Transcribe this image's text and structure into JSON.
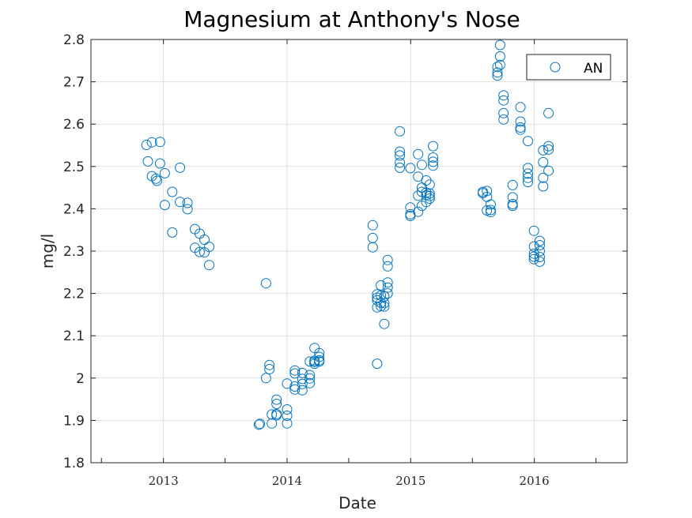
{
  "chart_data": {
    "type": "scatter",
    "title": "Magnesium at Anthony's Nose",
    "xlabel": "Date",
    "ylabel": "mg/l",
    "xlim": [
      "2012-06-01",
      "2016-10-01"
    ],
    "ylim": [
      1.8,
      2.8
    ],
    "x_ticks": [
      "2013-01-01",
      "2014-01-01",
      "2015-01-01",
      "2016-01-01"
    ],
    "x_tick_labels": [
      "2013",
      "2014",
      "2015",
      "2016"
    ],
    "y_ticks": [
      1.8,
      1.9,
      2.0,
      2.1,
      2.2,
      2.3,
      2.4,
      2.5,
      2.6,
      2.7,
      2.8
    ],
    "y_tick_labels": [
      "1.8",
      "1.9",
      "2",
      "2.1",
      "2.2",
      "2.3",
      "2.4",
      "2.5",
      "2.6",
      "2.7",
      "2.8"
    ],
    "grid": true,
    "legend_position": "top-right",
    "marker_color": "#0072bd",
    "series": [
      {
        "name": "AN",
        "points": [
          [
            "2012-11-12",
            2.551
          ],
          [
            "2012-11-16",
            2.512
          ],
          [
            "2012-11-28",
            2.557
          ],
          [
            "2012-11-28",
            2.477
          ],
          [
            "2012-12-10",
            2.471
          ],
          [
            "2012-12-13",
            2.466
          ],
          [
            "2012-12-22",
            2.558
          ],
          [
            "2012-12-22",
            2.507
          ],
          [
            "2013-01-05",
            2.484
          ],
          [
            "2013-01-05",
            2.409
          ],
          [
            "2013-01-27",
            2.44
          ],
          [
            "2013-01-27",
            2.344
          ],
          [
            "2013-02-19",
            2.497
          ],
          [
            "2013-02-19",
            2.416
          ],
          [
            "2013-03-13",
            2.414
          ],
          [
            "2013-03-13",
            2.399
          ],
          [
            "2013-04-04",
            2.352
          ],
          [
            "2013-04-04",
            2.308
          ],
          [
            "2013-04-18",
            2.341
          ],
          [
            "2013-04-18",
            2.298
          ],
          [
            "2013-05-02",
            2.327
          ],
          [
            "2013-05-02",
            2.297
          ],
          [
            "2013-05-16",
            2.31
          ],
          [
            "2013-05-16",
            2.267
          ],
          [
            "2013-10-10",
            1.89
          ],
          [
            "2013-10-13",
            1.892
          ],
          [
            "2013-10-31",
            2.224
          ],
          [
            "2013-10-31",
            2.0
          ],
          [
            "2013-11-10",
            2.031
          ],
          [
            "2013-11-10",
            2.021
          ],
          [
            "2013-11-17",
            1.914
          ],
          [
            "2013-11-17",
            1.893
          ],
          [
            "2013-12-01",
            1.949
          ],
          [
            "2013-12-01",
            1.939
          ],
          [
            "2013-12-01",
            1.915
          ],
          [
            "2013-12-01",
            1.912
          ],
          [
            "2014-01-01",
            1.987
          ],
          [
            "2014-01-01",
            1.926
          ],
          [
            "2014-01-01",
            1.911
          ],
          [
            "2014-01-01",
            1.893
          ],
          [
            "2014-01-24",
            2.018
          ],
          [
            "2014-01-24",
            2.011
          ],
          [
            "2014-01-24",
            1.98
          ],
          [
            "2014-01-24",
            1.973
          ],
          [
            "2014-02-15",
            2.012
          ],
          [
            "2014-02-15",
            1.998
          ],
          [
            "2014-02-15",
            1.986
          ],
          [
            "2014-02-15",
            1.971
          ],
          [
            "2014-03-09",
            2.039
          ],
          [
            "2014-03-09",
            2.007
          ],
          [
            "2014-03-09",
            1.999
          ],
          [
            "2014-03-09",
            1.988
          ],
          [
            "2014-03-23",
            2.071
          ],
          [
            "2014-03-23",
            2.041
          ],
          [
            "2014-03-23",
            2.038
          ],
          [
            "2014-03-23",
            2.034
          ],
          [
            "2014-04-06",
            2.059
          ],
          [
            "2014-04-06",
            2.05
          ],
          [
            "2014-04-06",
            2.042
          ],
          [
            "2014-04-06",
            2.039
          ],
          [
            "2014-09-11",
            2.361
          ],
          [
            "2014-09-11",
            2.331
          ],
          [
            "2014-09-11",
            2.309
          ],
          [
            "2014-09-24",
            2.198
          ],
          [
            "2014-09-24",
            2.19
          ],
          [
            "2014-09-24",
            2.184
          ],
          [
            "2014-09-24",
            2.167
          ],
          [
            "2014-09-24",
            2.034
          ],
          [
            "2014-10-05",
            2.219
          ],
          [
            "2014-10-05",
            2.195
          ],
          [
            "2014-10-05",
            2.178
          ],
          [
            "2014-10-05",
            2.17
          ],
          [
            "2014-10-15",
            2.193
          ],
          [
            "2014-10-15",
            2.177
          ],
          [
            "2014-10-15",
            2.169
          ],
          [
            "2014-10-15",
            2.128
          ],
          [
            "2014-10-25",
            2.279
          ],
          [
            "2014-10-25",
            2.264
          ],
          [
            "2014-10-25",
            2.226
          ],
          [
            "2014-10-25",
            2.214
          ],
          [
            "2014-10-25",
            2.2
          ],
          [
            "2014-11-30",
            2.583
          ],
          [
            "2014-11-30",
            2.535
          ],
          [
            "2014-11-30",
            2.526
          ],
          [
            "2014-11-30",
            2.509
          ],
          [
            "2014-11-30",
            2.497
          ],
          [
            "2014-12-31",
            2.496
          ],
          [
            "2014-12-31",
            2.403
          ],
          [
            "2014-12-31",
            2.387
          ],
          [
            "2014-12-31",
            2.383
          ],
          [
            "2015-01-23",
            2.529
          ],
          [
            "2015-01-23",
            2.476
          ],
          [
            "2015-01-23",
            2.431
          ],
          [
            "2015-01-23",
            2.393
          ],
          [
            "2015-02-03",
            2.504
          ],
          [
            "2015-02-03",
            2.45
          ],
          [
            "2015-02-03",
            2.44
          ],
          [
            "2015-02-03",
            2.407
          ],
          [
            "2015-02-16",
            2.467
          ],
          [
            "2015-02-16",
            2.438
          ],
          [
            "2015-02-16",
            2.432
          ],
          [
            "2015-02-16",
            2.416
          ],
          [
            "2015-02-26",
            2.457
          ],
          [
            "2015-02-26",
            2.436
          ],
          [
            "2015-02-26",
            2.43
          ],
          [
            "2015-02-26",
            2.424
          ],
          [
            "2015-03-08",
            2.548
          ],
          [
            "2015-03-08",
            2.521
          ],
          [
            "2015-03-08",
            2.511
          ],
          [
            "2015-03-08",
            2.502
          ],
          [
            "2015-08-02",
            2.44
          ],
          [
            "2015-08-02",
            2.437
          ],
          [
            "2015-08-14",
            2.442
          ],
          [
            "2015-08-14",
            2.428
          ],
          [
            "2015-08-14",
            2.396
          ],
          [
            "2015-08-25",
            2.41
          ],
          [
            "2015-08-25",
            2.397
          ],
          [
            "2015-08-25",
            2.392
          ],
          [
            "2015-09-14",
            2.735
          ],
          [
            "2015-09-14",
            2.722
          ],
          [
            "2015-09-14",
            2.715
          ],
          [
            "2015-09-22",
            2.787
          ],
          [
            "2015-09-22",
            2.76
          ],
          [
            "2015-09-22",
            2.74
          ],
          [
            "2015-10-02",
            2.668
          ],
          [
            "2015-10-02",
            2.656
          ],
          [
            "2015-10-02",
            2.626
          ],
          [
            "2015-10-02",
            2.611
          ],
          [
            "2015-10-29",
            2.456
          ],
          [
            "2015-10-29",
            2.427
          ],
          [
            "2015-10-29",
            2.411
          ],
          [
            "2015-10-29",
            2.407
          ],
          [
            "2015-11-21",
            2.64
          ],
          [
            "2015-11-21",
            2.606
          ],
          [
            "2015-11-21",
            2.592
          ],
          [
            "2015-11-21",
            2.587
          ],
          [
            "2015-12-13",
            2.56
          ],
          [
            "2015-12-13",
            2.496
          ],
          [
            "2015-12-13",
            2.483
          ],
          [
            "2015-12-13",
            2.473
          ],
          [
            "2015-12-13",
            2.463
          ],
          [
            "2015-12-31",
            2.348
          ],
          [
            "2015-12-31",
            2.311
          ],
          [
            "2015-12-31",
            2.294
          ],
          [
            "2015-12-31",
            2.287
          ],
          [
            "2015-12-31",
            2.281
          ],
          [
            "2016-01-17",
            2.324
          ],
          [
            "2016-01-17",
            2.314
          ],
          [
            "2016-01-17",
            2.3
          ],
          [
            "2016-01-17",
            2.286
          ],
          [
            "2016-01-17",
            2.275
          ],
          [
            "2016-01-27",
            2.538
          ],
          [
            "2016-01-27",
            2.51
          ],
          [
            "2016-01-27",
            2.473
          ],
          [
            "2016-01-27",
            2.453
          ],
          [
            "2016-02-12",
            2.626
          ],
          [
            "2016-02-12",
            2.548
          ],
          [
            "2016-02-12",
            2.54
          ],
          [
            "2016-02-12",
            2.49
          ]
        ]
      }
    ]
  }
}
